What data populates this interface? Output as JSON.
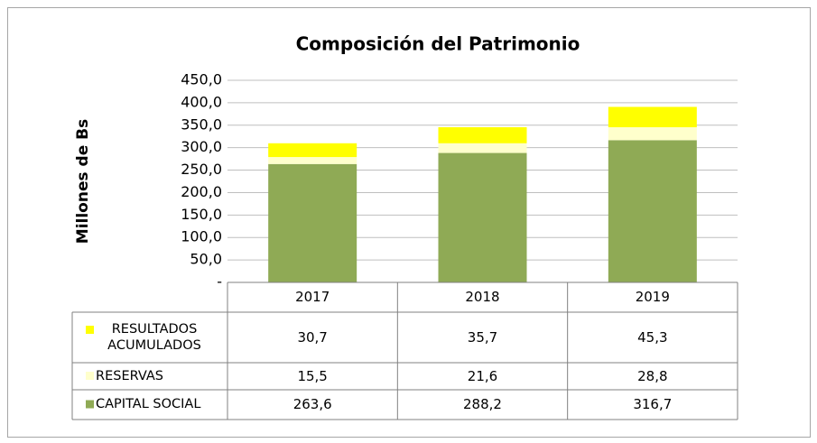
{
  "chart_data": {
    "type": "stacked_bar",
    "title": "Composición del Patrimonio",
    "y_label": "Millones de Bs",
    "categories": [
      "2017",
      "2018",
      "2019"
    ],
    "series": [
      {
        "name": "CAPITAL SOCIAL",
        "color": "#8faa55",
        "values": [
          263.6,
          288.2,
          316.7
        ],
        "value_labels": [
          "263,6",
          "288,2",
          "316,7"
        ]
      },
      {
        "name": "RESERVAS",
        "color": "#ffffcc",
        "values": [
          15.5,
          21.6,
          28.8
        ],
        "value_labels": [
          "15,5",
          "21,6",
          "28,8"
        ]
      },
      {
        "name": "RESULTADOS ACUMULADOS",
        "color": "#ffff00",
        "values": [
          30.7,
          35.7,
          45.3
        ],
        "value_labels": [
          "30,7",
          "35,7",
          "45,3"
        ]
      }
    ],
    "ylim": [
      0,
      450
    ],
    "yticks": [
      {
        "value": 0,
        "label": "-"
      },
      {
        "value": 50,
        "label": "50,0"
      },
      {
        "value": 100,
        "label": "100,0"
      },
      {
        "value": 150,
        "label": "150,0"
      },
      {
        "value": 200,
        "label": "200,0"
      },
      {
        "value": 250,
        "label": "250,0"
      },
      {
        "value": 300,
        "label": "300,0"
      },
      {
        "value": 350,
        "label": "350,0"
      },
      {
        "value": 400,
        "label": "400,0"
      },
      {
        "value": 450,
        "label": "450,0"
      }
    ],
    "grid": true
  }
}
